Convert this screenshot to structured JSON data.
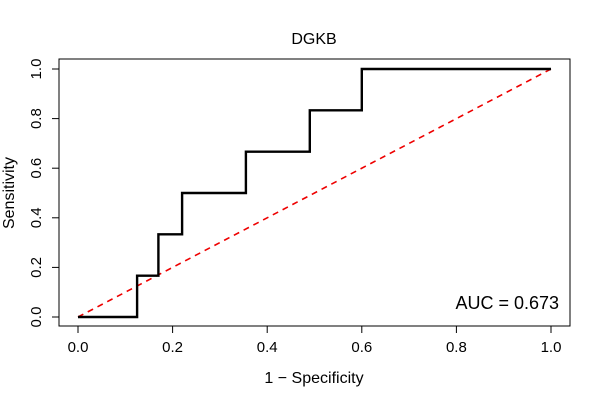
{
  "chart_data": {
    "type": "line",
    "title": "DGKB",
    "xlabel": "1 − Specificity",
    "ylabel": "Sensitivity",
    "xlim": [
      0,
      1
    ],
    "ylim": [
      0,
      1
    ],
    "x_ticks": [
      "0.0",
      "0.2",
      "0.4",
      "0.6",
      "0.8",
      "1.0"
    ],
    "y_ticks": [
      "0.0",
      "0.2",
      "0.4",
      "0.6",
      "0.8",
      "1.0"
    ],
    "grid": false,
    "series": [
      {
        "color": "#000000",
        "style": "solid",
        "x": [
          0,
          0.125,
          0.125,
          0.17,
          0.17,
          0.22,
          0.22,
          0.355,
          0.355,
          0.49,
          0.49,
          0.6,
          0.6,
          1.0
        ],
        "y": [
          0,
          0,
          0.1667,
          0.1667,
          0.3333,
          0.3333,
          0.5,
          0.5,
          0.6667,
          0.6667,
          0.8333,
          0.8333,
          1.0,
          1.0
        ]
      },
      {
        "color": "#ee0000",
        "style": "dashed",
        "x": [
          0,
          1
        ],
        "y": [
          0,
          1
        ]
      }
    ],
    "annotations": [
      {
        "text": "AUC = 0.673",
        "position": "bottom-right"
      }
    ]
  }
}
